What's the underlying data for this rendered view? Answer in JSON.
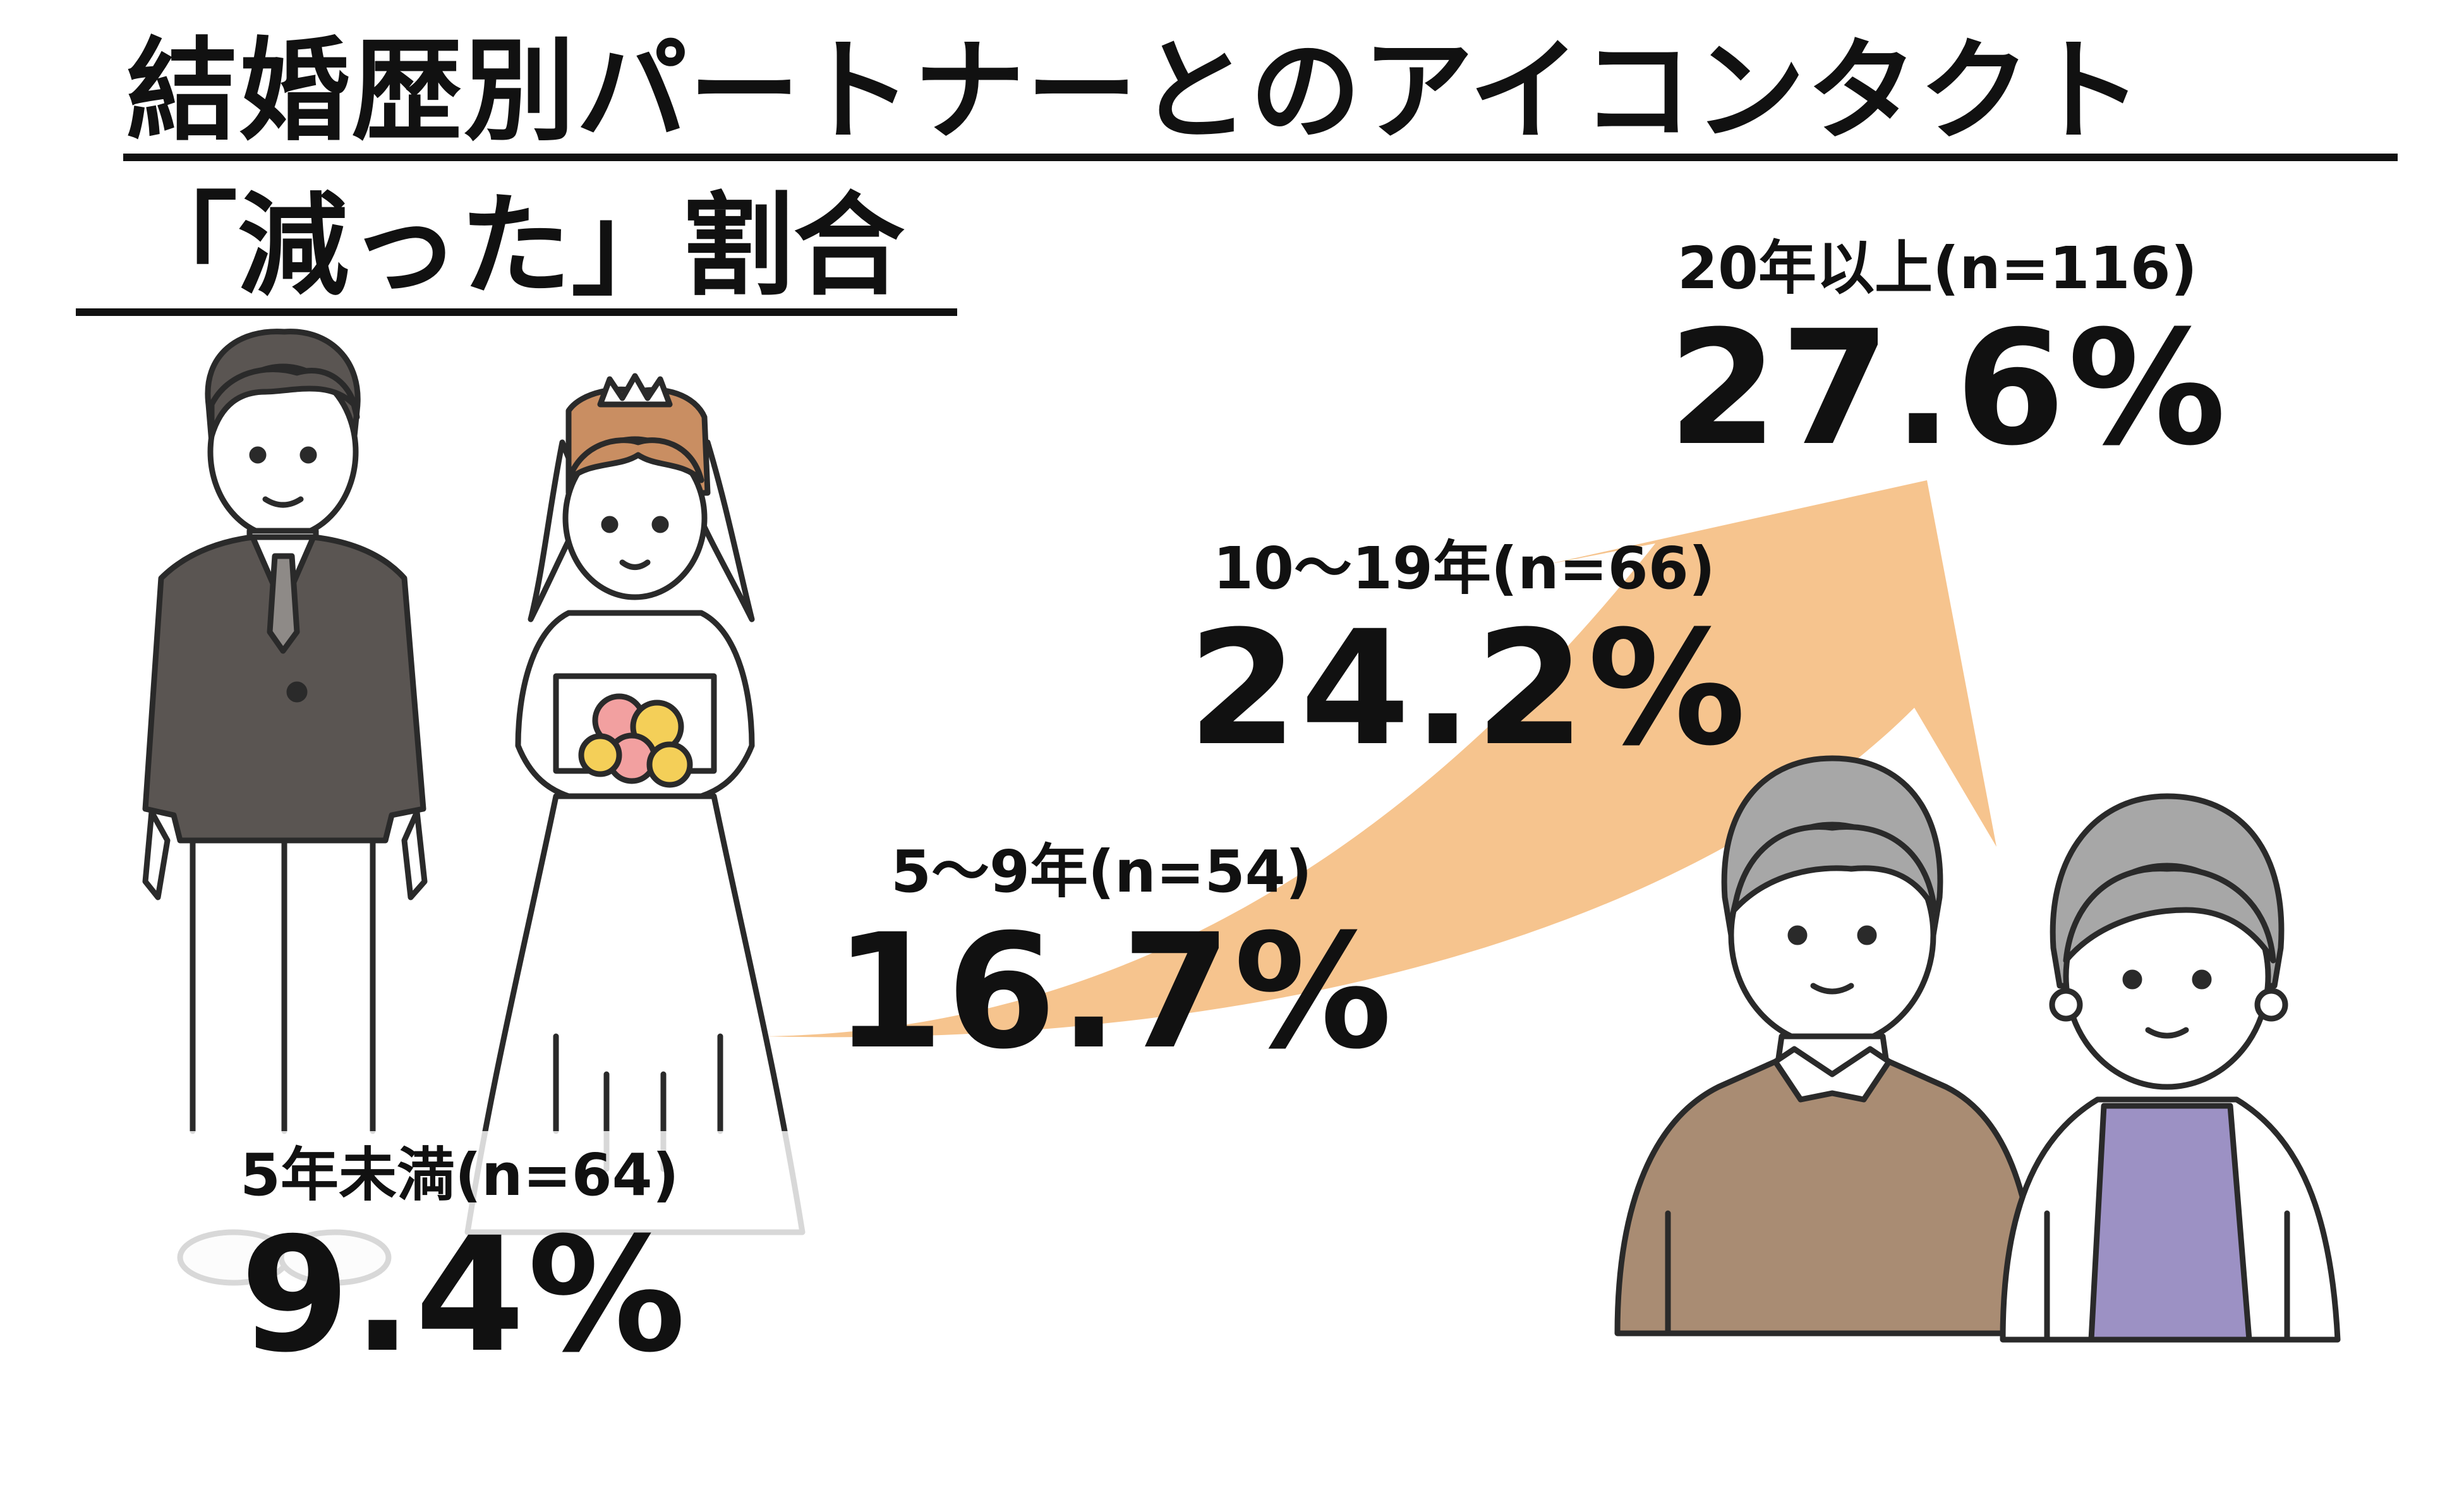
{
  "title": {
    "line1": "結婚歴別パートナーとのアイコンタクト",
    "line2": "「減った」割合"
  },
  "colors": {
    "arrow": "#F6C48E",
    "groom_suit": "#5A5552",
    "older_man_sweater": "#A98C73",
    "older_woman_top": "#9C91C4",
    "hair_gray": "#A7A7A7",
    "bride_hair": "#C98E62",
    "bouquet_pink": "#F2A0A0",
    "bouquet_yellow": "#F4CF58"
  },
  "icons": [
    "groom-illustration",
    "bride-illustration",
    "older-man-illustration",
    "older-woman-illustration",
    "rising-arrow"
  ],
  "chart_data": {
    "type": "bar",
    "categories": [
      "5年未満(n=64)",
      "5～9年(n=54)",
      "10～19年(n=66)",
      "20年以上(n=116)"
    ],
    "values": [
      9.4,
      16.7,
      24.2,
      27.6
    ],
    "value_labels": [
      "9.4%",
      "16.7%",
      "24.2%",
      "27.6%"
    ],
    "unit": "%",
    "title": "結婚歴別パートナーとのアイコンタクト「減った」割合"
  }
}
